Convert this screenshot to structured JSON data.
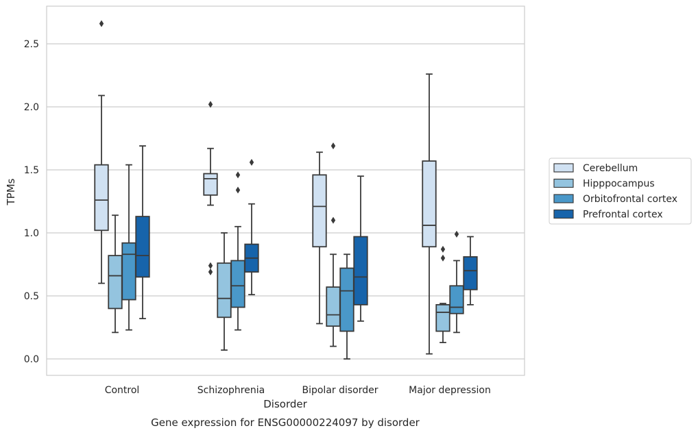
{
  "chart_data": {
    "type": "box",
    "title": "",
    "caption": "Gene expression for ENSG00000224097 by disorder",
    "xlabel": "Disorder",
    "ylabel": "TPMs",
    "ylim": [
      -0.13,
      2.8
    ],
    "yticks": [
      "0.0",
      "0.5",
      "1.0",
      "1.5",
      "2.0",
      "2.5"
    ],
    "grid": "horizontal",
    "legend_position": "right",
    "categories": [
      "Control",
      "Schizophrenia",
      "Bipolar disorder",
      "Major depression"
    ],
    "series": [
      {
        "name": "Cerebellum",
        "color": "#d0e1f2",
        "boxes": [
          {
            "min": 0.6,
            "q1": 1.02,
            "median": 1.26,
            "q3": 1.54,
            "max": 2.09,
            "outliers": [
              2.66
            ]
          },
          {
            "min": 1.22,
            "q1": 1.3,
            "median": 1.43,
            "q3": 1.47,
            "max": 1.67,
            "outliers": [
              2.02,
              0.74,
              0.69
            ]
          },
          {
            "min": 0.28,
            "q1": 0.89,
            "median": 1.21,
            "q3": 1.46,
            "max": 1.64,
            "outliers": []
          },
          {
            "min": 0.04,
            "q1": 0.89,
            "median": 1.06,
            "q3": 1.57,
            "max": 2.26,
            "outliers": []
          }
        ]
      },
      {
        "name": "Hipppocampus",
        "color": "#94c4df",
        "boxes": [
          {
            "min": 0.21,
            "q1": 0.4,
            "median": 0.66,
            "q3": 0.82,
            "max": 1.14,
            "outliers": []
          },
          {
            "min": 0.07,
            "q1": 0.33,
            "median": 0.48,
            "q3": 0.76,
            "max": 1.0,
            "outliers": []
          },
          {
            "min": 0.1,
            "q1": 0.26,
            "median": 0.35,
            "q3": 0.57,
            "max": 0.83,
            "outliers": [
              1.69,
              1.1
            ]
          },
          {
            "min": 0.13,
            "q1": 0.22,
            "median": 0.37,
            "q3": 0.43,
            "max": 0.44,
            "outliers": [
              0.87,
              0.8
            ]
          }
        ]
      },
      {
        "name": "Orbitofrontal cortex",
        "color": "#4a98c9",
        "boxes": [
          {
            "min": 0.23,
            "q1": 0.47,
            "median": 0.83,
            "q3": 0.92,
            "max": 1.54,
            "outliers": []
          },
          {
            "min": 0.23,
            "q1": 0.41,
            "median": 0.58,
            "q3": 0.78,
            "max": 1.05,
            "outliers": [
              1.46,
              1.34
            ]
          },
          {
            "min": 0.0,
            "q1": 0.22,
            "median": 0.54,
            "q3": 0.72,
            "max": 0.83,
            "outliers": []
          },
          {
            "min": 0.21,
            "q1": 0.36,
            "median": 0.41,
            "q3": 0.58,
            "max": 0.78,
            "outliers": [
              0.99
            ]
          }
        ]
      },
      {
        "name": "Prefrontal cortex",
        "color": "#1764ab",
        "boxes": [
          {
            "min": 0.32,
            "q1": 0.65,
            "median": 0.82,
            "q3": 1.13,
            "max": 1.69,
            "outliers": []
          },
          {
            "min": 0.51,
            "q1": 0.69,
            "median": 0.8,
            "q3": 0.91,
            "max": 1.23,
            "outliers": [
              1.56
            ]
          },
          {
            "min": 0.3,
            "q1": 0.43,
            "median": 0.65,
            "q3": 0.97,
            "max": 1.45,
            "outliers": []
          },
          {
            "min": 0.43,
            "q1": 0.55,
            "median": 0.7,
            "q3": 0.81,
            "max": 0.97,
            "outliers": []
          }
        ]
      }
    ]
  }
}
